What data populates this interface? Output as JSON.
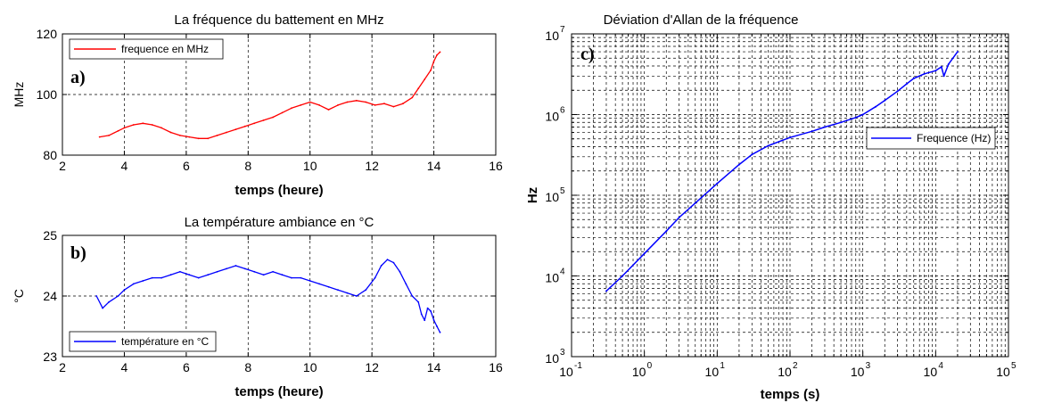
{
  "chart_data": [
    {
      "id": "a",
      "panel_label": "a)",
      "type": "line",
      "title": "La fréquence du battement en MHz",
      "xlabel": "temps (heure)",
      "ylabel": "MHz",
      "xlim": [
        2,
        16
      ],
      "ylim": [
        80,
        120
      ],
      "xticks": [
        "2",
        "4",
        "6",
        "8",
        "10",
        "12",
        "14",
        "16"
      ],
      "yticks": [
        "80",
        "100",
        "120"
      ],
      "grid": true,
      "legend_position": "top-left",
      "series": [
        {
          "name": "frequence en MHz",
          "color": "#ff0000",
          "x": [
            3.2,
            3.5,
            3.8,
            4.0,
            4.3,
            4.6,
            4.9,
            5.2,
            5.5,
            5.8,
            6.1,
            6.4,
            6.7,
            7.0,
            7.3,
            7.6,
            7.9,
            8.2,
            8.5,
            8.8,
            9.1,
            9.4,
            9.7,
            10.0,
            10.3,
            10.6,
            10.9,
            11.2,
            11.5,
            11.8,
            12.1,
            12.4,
            12.7,
            13.0,
            13.3,
            13.5,
            13.7,
            13.9,
            14.0,
            14.1,
            14.2
          ],
          "y": [
            86,
            86.5,
            88,
            89,
            90,
            90.5,
            90,
            89,
            87.5,
            86.5,
            86,
            85.5,
            85.5,
            86.5,
            87.5,
            88.5,
            89.5,
            90.5,
            91.5,
            92.5,
            94,
            95.5,
            96.5,
            97.5,
            96.5,
            95,
            96.5,
            97.5,
            98,
            97.5,
            96.5,
            97,
            96,
            97,
            99,
            102,
            105,
            108,
            111,
            113,
            114
          ]
        }
      ]
    },
    {
      "id": "b",
      "panel_label": "b)",
      "type": "line",
      "title": "La température ambiance en °C",
      "xlabel": "temps (heure)",
      "ylabel": "°C",
      "xlim": [
        2,
        16
      ],
      "ylim": [
        23,
        25
      ],
      "xticks": [
        "2",
        "4",
        "6",
        "8",
        "10",
        "12",
        "14",
        "16"
      ],
      "yticks": [
        "23",
        "24",
        "25"
      ],
      "grid": true,
      "legend_position": "bottom-left",
      "series": [
        {
          "name": "température en °C",
          "color": "#0000ff",
          "x": [
            3.1,
            3.3,
            3.5,
            3.8,
            4.0,
            4.3,
            4.6,
            4.9,
            5.2,
            5.5,
            5.8,
            6.1,
            6.4,
            6.7,
            7.0,
            7.3,
            7.6,
            7.9,
            8.2,
            8.5,
            8.8,
            9.1,
            9.4,
            9.7,
            10.0,
            10.3,
            10.6,
            10.9,
            11.2,
            11.5,
            11.8,
            12.1,
            12.3,
            12.5,
            12.7,
            12.9,
            13.1,
            13.3,
            13.5,
            13.6,
            13.7,
            13.8,
            13.9,
            14.0,
            14.1,
            14.2
          ],
          "y": [
            24.0,
            23.8,
            23.9,
            24.0,
            24.1,
            24.2,
            24.25,
            24.3,
            24.3,
            24.35,
            24.4,
            24.35,
            24.3,
            24.35,
            24.4,
            24.45,
            24.5,
            24.45,
            24.4,
            24.35,
            24.4,
            24.35,
            24.3,
            24.3,
            24.25,
            24.2,
            24.15,
            24.1,
            24.05,
            24.0,
            24.1,
            24.3,
            24.5,
            24.6,
            24.55,
            24.4,
            24.2,
            24.0,
            23.9,
            23.7,
            23.6,
            23.8,
            23.75,
            23.6,
            23.5,
            23.4
          ]
        }
      ]
    },
    {
      "id": "c",
      "panel_label": "c)",
      "type": "line",
      "title": "Déviation d'Allan de la fréquence",
      "xlabel": "temps (s)",
      "ylabel": "Hz",
      "xscale": "log",
      "yscale": "log",
      "xlim": [
        0.1,
        100000
      ],
      "ylim": [
        1000,
        10000000
      ],
      "xticks": [
        {
          "base": "10",
          "exp": "-1"
        },
        {
          "base": "10",
          "exp": "0"
        },
        {
          "base": "10",
          "exp": "1"
        },
        {
          "base": "10",
          "exp": "2"
        },
        {
          "base": "10",
          "exp": "3"
        },
        {
          "base": "10",
          "exp": "4"
        },
        {
          "base": "10",
          "exp": "5"
        }
      ],
      "yticks": [
        {
          "base": "10",
          "exp": "3"
        },
        {
          "base": "10",
          "exp": "4"
        },
        {
          "base": "10",
          "exp": "5"
        },
        {
          "base": "10",
          "exp": "6"
        },
        {
          "base": "10",
          "exp": "7"
        }
      ],
      "grid": true,
      "legend_position": "middle-right",
      "series": [
        {
          "name": "Frequence (Hz)",
          "color": "#0000ff",
          "x": [
            0.3,
            0.5,
            1,
            2,
            3,
            5,
            10,
            20,
            30,
            50,
            100,
            200,
            300,
            500,
            800,
            1000,
            1500,
            2000,
            3000,
            4000,
            5000,
            7000,
            10000,
            12000,
            13000,
            15000,
            20000
          ],
          "y": [
            6500,
            10000,
            19000,
            36000,
            53000,
            80000,
            140000,
            240000,
            320000,
            410000,
            520000,
            620000,
            700000,
            800000,
            920000,
            1000000,
            1250000,
            1500000,
            1950000,
            2400000,
            2800000,
            3200000,
            3500000,
            3900000,
            3000000,
            4200000,
            6000000
          ]
        }
      ]
    }
  ]
}
